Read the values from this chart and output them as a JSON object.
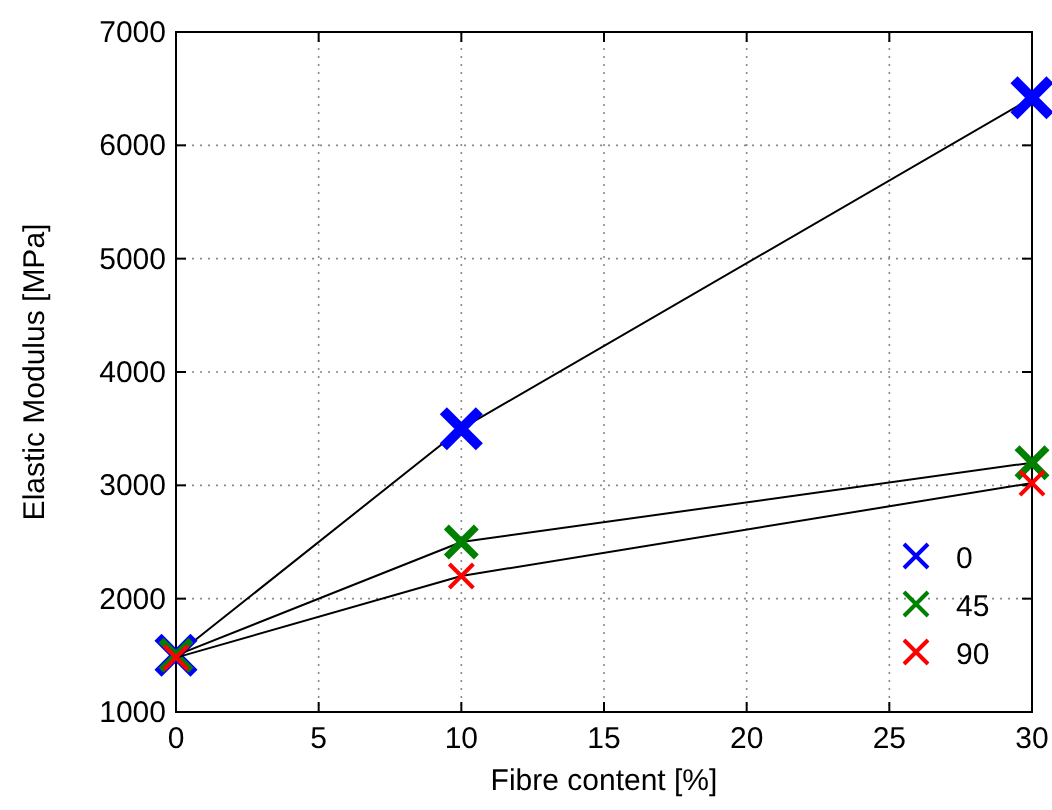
{
  "chart_data": {
    "type": "line",
    "xlabel": "Fibre content [%]",
    "ylabel": "Elastic Modulus [MPa]",
    "x": [
      0,
      10,
      30
    ],
    "series": [
      {
        "name": "0",
        "color": "#0000ff",
        "values": [
          1500,
          3500,
          6420
        ]
      },
      {
        "name": "45",
        "color": "#008000",
        "values": [
          1500,
          2500,
          3200
        ]
      },
      {
        "name": "90",
        "color": "#ff0000",
        "values": [
          1480,
          2200,
          3020
        ]
      }
    ],
    "xlim": [
      0,
      30
    ],
    "xticks": [
      0,
      5,
      10,
      15,
      20,
      25,
      30
    ],
    "ylim": [
      1000,
      7000
    ],
    "yticks": [
      1000,
      2000,
      3000,
      4000,
      5000,
      6000,
      7000
    ],
    "grid": true,
    "legend": "bottom right",
    "marker": "cross",
    "line_style": "solid"
  }
}
